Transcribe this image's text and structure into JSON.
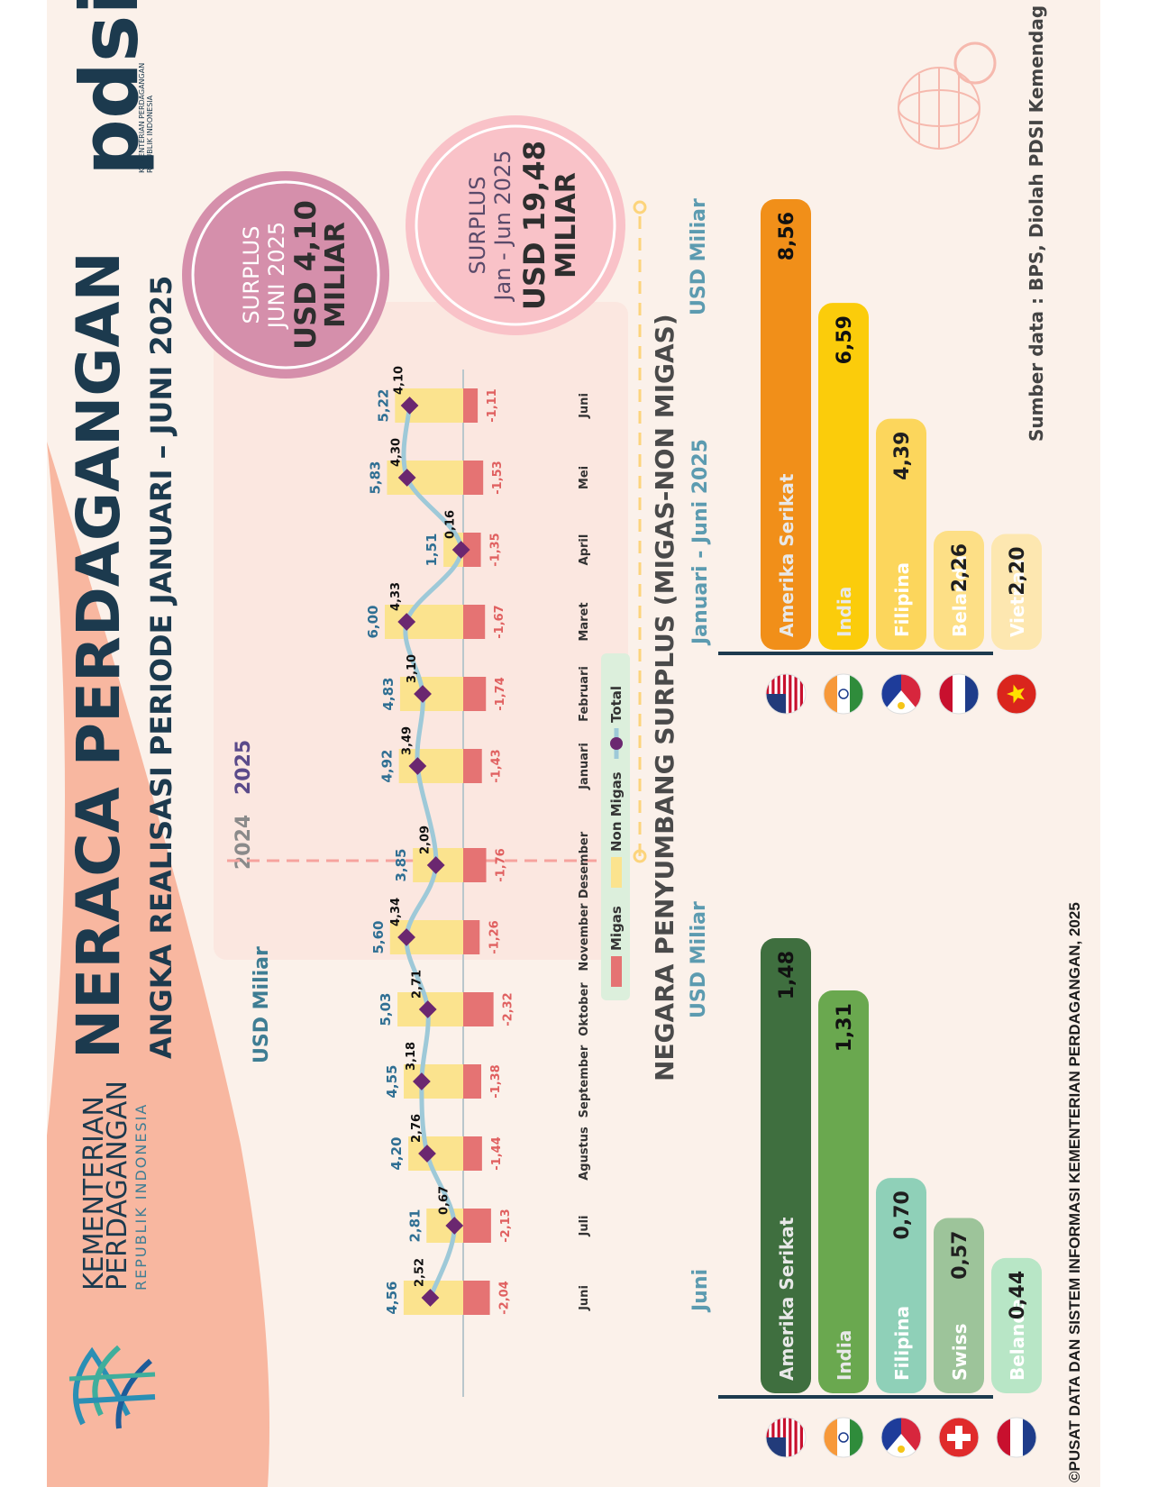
{
  "header": {
    "title": "NERACA PERDAGANGAN",
    "subtitle": "ANGKA REALISASI PERIODE JANUARI – JUNI 2025",
    "ministry_line1": "KEMENTERIAN",
    "ministry_line2": "PERDAGANGAN",
    "ministry_line3": "REPUBLIK INDONESIA",
    "pdsi_logo": "pdsi",
    "pdsi_caption1": "KEMENTERIAN PERDAGANGAN",
    "pdsi_caption2": "REPUBLIK INDONESIA"
  },
  "surplus_badges": [
    {
      "line1": "SURPLUS",
      "line2": "JUNI 2025",
      "line3": "USD 4,10",
      "line4": "MILIAR",
      "color": "#d58fab"
    },
    {
      "line1": "SURPLUS",
      "line2": "Jan - Jun 2025",
      "line3": "USD 19,48",
      "line4": "MILIAR",
      "color": "#f9c2c8"
    }
  ],
  "chart_data": {
    "type": "bar",
    "ylabel": "USD Miliar",
    "year_labels": [
      "2024",
      "2025"
    ],
    "categories": [
      "Juni",
      "Juli",
      "Agustus",
      "September",
      "Oktober",
      "November",
      "Desember",
      "Januari",
      "Februari",
      "Maret",
      "April",
      "Mei",
      "Juni"
    ],
    "series": [
      {
        "name": "Migas",
        "type": "bar",
        "color": "#e57373",
        "values": [
          -2.04,
          -2.13,
          -1.44,
          -1.38,
          -2.32,
          -1.26,
          -1.76,
          -1.43,
          -1.74,
          -1.67,
          -1.35,
          -1.53,
          -1.11
        ],
        "labels": [
          "-2,04",
          "-2,13",
          "-1,44",
          "-1,38",
          "-2,32",
          "-1,26",
          "-1,76",
          "-1,43",
          "-1,74",
          "-1,67",
          "-1,35",
          "-1,53",
          "-1,11"
        ]
      },
      {
        "name": "Non Migas",
        "type": "bar",
        "color": "#fbe38e",
        "values": [
          4.56,
          2.81,
          4.2,
          4.55,
          5.03,
          5.6,
          3.85,
          4.92,
          4.83,
          6.0,
          1.51,
          5.83,
          5.22
        ],
        "labels": [
          "4,56",
          "2,81",
          "4,20",
          "4,55",
          "5,03",
          "5,60",
          "3,85",
          "4,92",
          "4,83",
          "6,00",
          "1,51",
          "5,83",
          "5,22"
        ]
      },
      {
        "name": "Total",
        "type": "line",
        "color": "#9ec9d8",
        "marker_color": "#6b2770",
        "values": [
          2.52,
          0.67,
          2.76,
          3.18,
          2.71,
          4.34,
          2.09,
          3.49,
          3.1,
          4.33,
          0.16,
          4.3,
          4.1
        ],
        "labels": [
          "2,52",
          "0,67",
          "2,76",
          "3,18",
          "2,71",
          "4,34",
          "2,09",
          "3,49",
          "3,10",
          "4,33",
          "0,16",
          "4,30",
          "4,10"
        ]
      }
    ],
    "legend": [
      "Migas",
      "Non Migas",
      "Total"
    ],
    "legend_position": "bottom"
  },
  "contributors": {
    "title": "NEGARA PENYUMBANG SURPLUS (MIGAS-NON MIGAS)",
    "unit": "USD Miliar",
    "juni": {
      "label": "Juni",
      "countries": [
        "Amerika Serikat",
        "India",
        "Filipina",
        "Swiss",
        "Belanda"
      ],
      "values": [
        1.48,
        1.31,
        0.7,
        0.57,
        0.44
      ],
      "labels": [
        "1,48",
        "1,31",
        "0,70",
        "0,57",
        "0,44"
      ],
      "colors": [
        "#3f6f3f",
        "#6aa84f",
        "#8fd0b8",
        "#9dc49a",
        "#b8e6c6"
      ],
      "flags": [
        "flag-us",
        "flag-in",
        "flag-ph",
        "flag-ch",
        "flag-nl"
      ]
    },
    "jan_jun": {
      "label": "Januari - Juni 2025",
      "countries": [
        "Amerika Serikat",
        "India",
        "Filipina",
        "Belanda",
        "Vietnam"
      ],
      "values": [
        8.56,
        6.59,
        4.39,
        2.26,
        2.2
      ],
      "labels": [
        "8,56",
        "6,59",
        "4,39",
        "2,26",
        "2,20"
      ],
      "colors": [
        "#f18f19",
        "#fbcc0b",
        "#fcd65c",
        "#fddf86",
        "#fde7b0"
      ],
      "flags": [
        "flag-us",
        "flag-in",
        "flag-ph",
        "flag-nl",
        "flag-vn"
      ]
    }
  },
  "footer": {
    "source": "Sumber data : BPS, Diolah PDSI Kemendag",
    "copyright": "©PUSAT DATA DAN SISTEM INFORMASI KEMENTERIAN PERDAGANGAN, 2025"
  },
  "colors": {
    "navy": "#1c3a4e",
    "teal": "#3e7d93",
    "pdsi_green": "#2ab0a4",
    "pdsi_pink": "#f36a9f",
    "purple": "#5a4a8a"
  }
}
